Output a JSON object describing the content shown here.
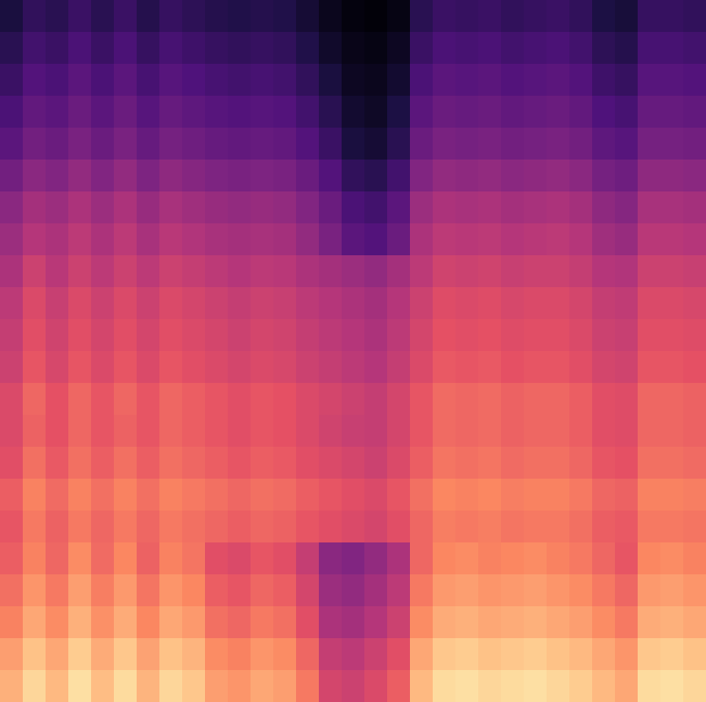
{
  "chart_data": {
    "type": "heatmap",
    "zlim": [
      0,
      100
    ],
    "tick_labels": false,
    "cells": [
      [
        12,
        18,
        16,
        20,
        16,
        20,
        15,
        19,
        17,
        15,
        14,
        15,
        14,
        10,
        5,
        2,
        1,
        3,
        16,
        20,
        19,
        20,
        18,
        19,
        20,
        18,
        13,
        11,
        19,
        19,
        18
      ],
      [
        16,
        22,
        20,
        24,
        20,
        24,
        19,
        23,
        21,
        19,
        18,
        19,
        18,
        14,
        8,
        4,
        3,
        6,
        20,
        24,
        23,
        24,
        22,
        23,
        24,
        22,
        17,
        15,
        23,
        23,
        22
      ],
      [
        20,
        26,
        24,
        28,
        24,
        28,
        23,
        27,
        25,
        23,
        22,
        23,
        22,
        18,
        12,
        6,
        5,
        9,
        24,
        28,
        27,
        28,
        26,
        27,
        28,
        26,
        21,
        19,
        27,
        27,
        26
      ],
      [
        24,
        30,
        28,
        32,
        28,
        32,
        27,
        31,
        29,
        27,
        26,
        27,
        26,
        22,
        16,
        9,
        7,
        13,
        28,
        32,
        31,
        32,
        30,
        31,
        32,
        30,
        25,
        23,
        31,
        31,
        30
      ],
      [
        28,
        34,
        32,
        36,
        32,
        36,
        31,
        35,
        33,
        31,
        30,
        31,
        30,
        26,
        20,
        12,
        10,
        16,
        32,
        36,
        35,
        36,
        34,
        35,
        36,
        34,
        29,
        27,
        35,
        35,
        34
      ],
      [
        34,
        40,
        38,
        42,
        38,
        42,
        37,
        41,
        39,
        37,
        36,
        37,
        36,
        32,
        26,
        18,
        16,
        22,
        38,
        42,
        41,
        42,
        40,
        41,
        42,
        40,
        35,
        33,
        41,
        41,
        40
      ],
      [
        40,
        46,
        44,
        48,
        44,
        48,
        43,
        47,
        45,
        43,
        42,
        43,
        42,
        38,
        32,
        24,
        22,
        28,
        44,
        48,
        47,
        48,
        46,
        47,
        48,
        46,
        41,
        39,
        47,
        47,
        46
      ],
      [
        44,
        50,
        48,
        52,
        48,
        52,
        47,
        51,
        49,
        47,
        46,
        47,
        46,
        42,
        36,
        28,
        26,
        32,
        48,
        52,
        51,
        52,
        50,
        51,
        52,
        50,
        45,
        43,
        51,
        51,
        50
      ],
      [
        48,
        56,
        51,
        56,
        52,
        56,
        52,
        56,
        54,
        52,
        50,
        52,
        51,
        48,
        46,
        44,
        42,
        46,
        52,
        57,
        56,
        57,
        55,
        56,
        56,
        54,
        50,
        49,
        56,
        56,
        55
      ],
      [
        52,
        60,
        55,
        60,
        56,
        60,
        56,
        60,
        58,
        56,
        54,
        56,
        55,
        52,
        50,
        48,
        46,
        50,
        56,
        61,
        60,
        61,
        59,
        60,
        60,
        58,
        54,
        53,
        60,
        60,
        59
      ],
      [
        54,
        62,
        57,
        62,
        58,
        62,
        58,
        62,
        60,
        58,
        56,
        58,
        57,
        54,
        52,
        50,
        48,
        52,
        58,
        63,
        62,
        63,
        61,
        62,
        62,
        60,
        56,
        55,
        62,
        62,
        61
      ],
      [
        56,
        64,
        59,
        64,
        60,
        64,
        60,
        64,
        62,
        60,
        58,
        60,
        59,
        56,
        54,
        52,
        50,
        54,
        60,
        65,
        64,
        65,
        63,
        64,
        64,
        62,
        58,
        57,
        64,
        64,
        63
      ],
      [
        60,
        68,
        63,
        68,
        64,
        68,
        64,
        68,
        66,
        64,
        62,
        64,
        63,
        60,
        58,
        56,
        54,
        58,
        64,
        69,
        68,
        69,
        67,
        68,
        68,
        66,
        62,
        61,
        68,
        68,
        67
      ],
      [
        60,
        67,
        63,
        68,
        64,
        67,
        64,
        68,
        66,
        64,
        62,
        64,
        63,
        60,
        57,
        55,
        54,
        58,
        64,
        69,
        68,
        69,
        67,
        68,
        68,
        66,
        62,
        61,
        68,
        68,
        67
      ],
      [
        62,
        70,
        65,
        70,
        66,
        70,
        66,
        70,
        68,
        66,
        64,
        66,
        65,
        62,
        60,
        58,
        56,
        60,
        66,
        71,
        70,
        71,
        69,
        70,
        70,
        68,
        64,
        63,
        70,
        70,
        69
      ],
      [
        66,
        74,
        69,
        74,
        70,
        74,
        70,
        74,
        72,
        70,
        68,
        70,
        69,
        66,
        64,
        62,
        60,
        64,
        70,
        75,
        74,
        75,
        73,
        74,
        74,
        72,
        68,
        67,
        74,
        74,
        73
      ],
      [
        64,
        72,
        67,
        72,
        68,
        72,
        68,
        72,
        70,
        68,
        66,
        68,
        67,
        64,
        62,
        60,
        58,
        62,
        68,
        73,
        72,
        73,
        71,
        72,
        72,
        70,
        66,
        65,
        72,
        72,
        71
      ],
      [
        66,
        74,
        68,
        76,
        69,
        75,
        67,
        74,
        71,
        62,
        60,
        64,
        62,
        54,
        40,
        38,
        42,
        48,
        68,
        75,
        76,
        74,
        75,
        76,
        74,
        72,
        68,
        64,
        75,
        76,
        74
      ],
      [
        70,
        78,
        72,
        80,
        73,
        79,
        71,
        78,
        75,
        66,
        64,
        68,
        66,
        58,
        44,
        42,
        46,
        52,
        72,
        79,
        80,
        78,
        79,
        80,
        78,
        76,
        72,
        68,
        79,
        80,
        78
      ],
      [
        74,
        82,
        76,
        84,
        77,
        83,
        75,
        82,
        79,
        70,
        68,
        72,
        70,
        62,
        48,
        46,
        50,
        56,
        76,
        83,
        84,
        82,
        83,
        84,
        82,
        80,
        76,
        72,
        83,
        84,
        82
      ],
      [
        80,
        88,
        82,
        90,
        83,
        89,
        81,
        88,
        85,
        76,
        74,
        78,
        76,
        68,
        54,
        52,
        56,
        62,
        82,
        89,
        90,
        88,
        89,
        90,
        88,
        86,
        82,
        78,
        89,
        90,
        88
      ],
      [
        84,
        92,
        86,
        94,
        87,
        93,
        85,
        92,
        89,
        80,
        78,
        82,
        80,
        72,
        58,
        56,
        60,
        66,
        86,
        93,
        94,
        92,
        93,
        94,
        92,
        90,
        86,
        82,
        93,
        94,
        92
      ]
    ]
  }
}
